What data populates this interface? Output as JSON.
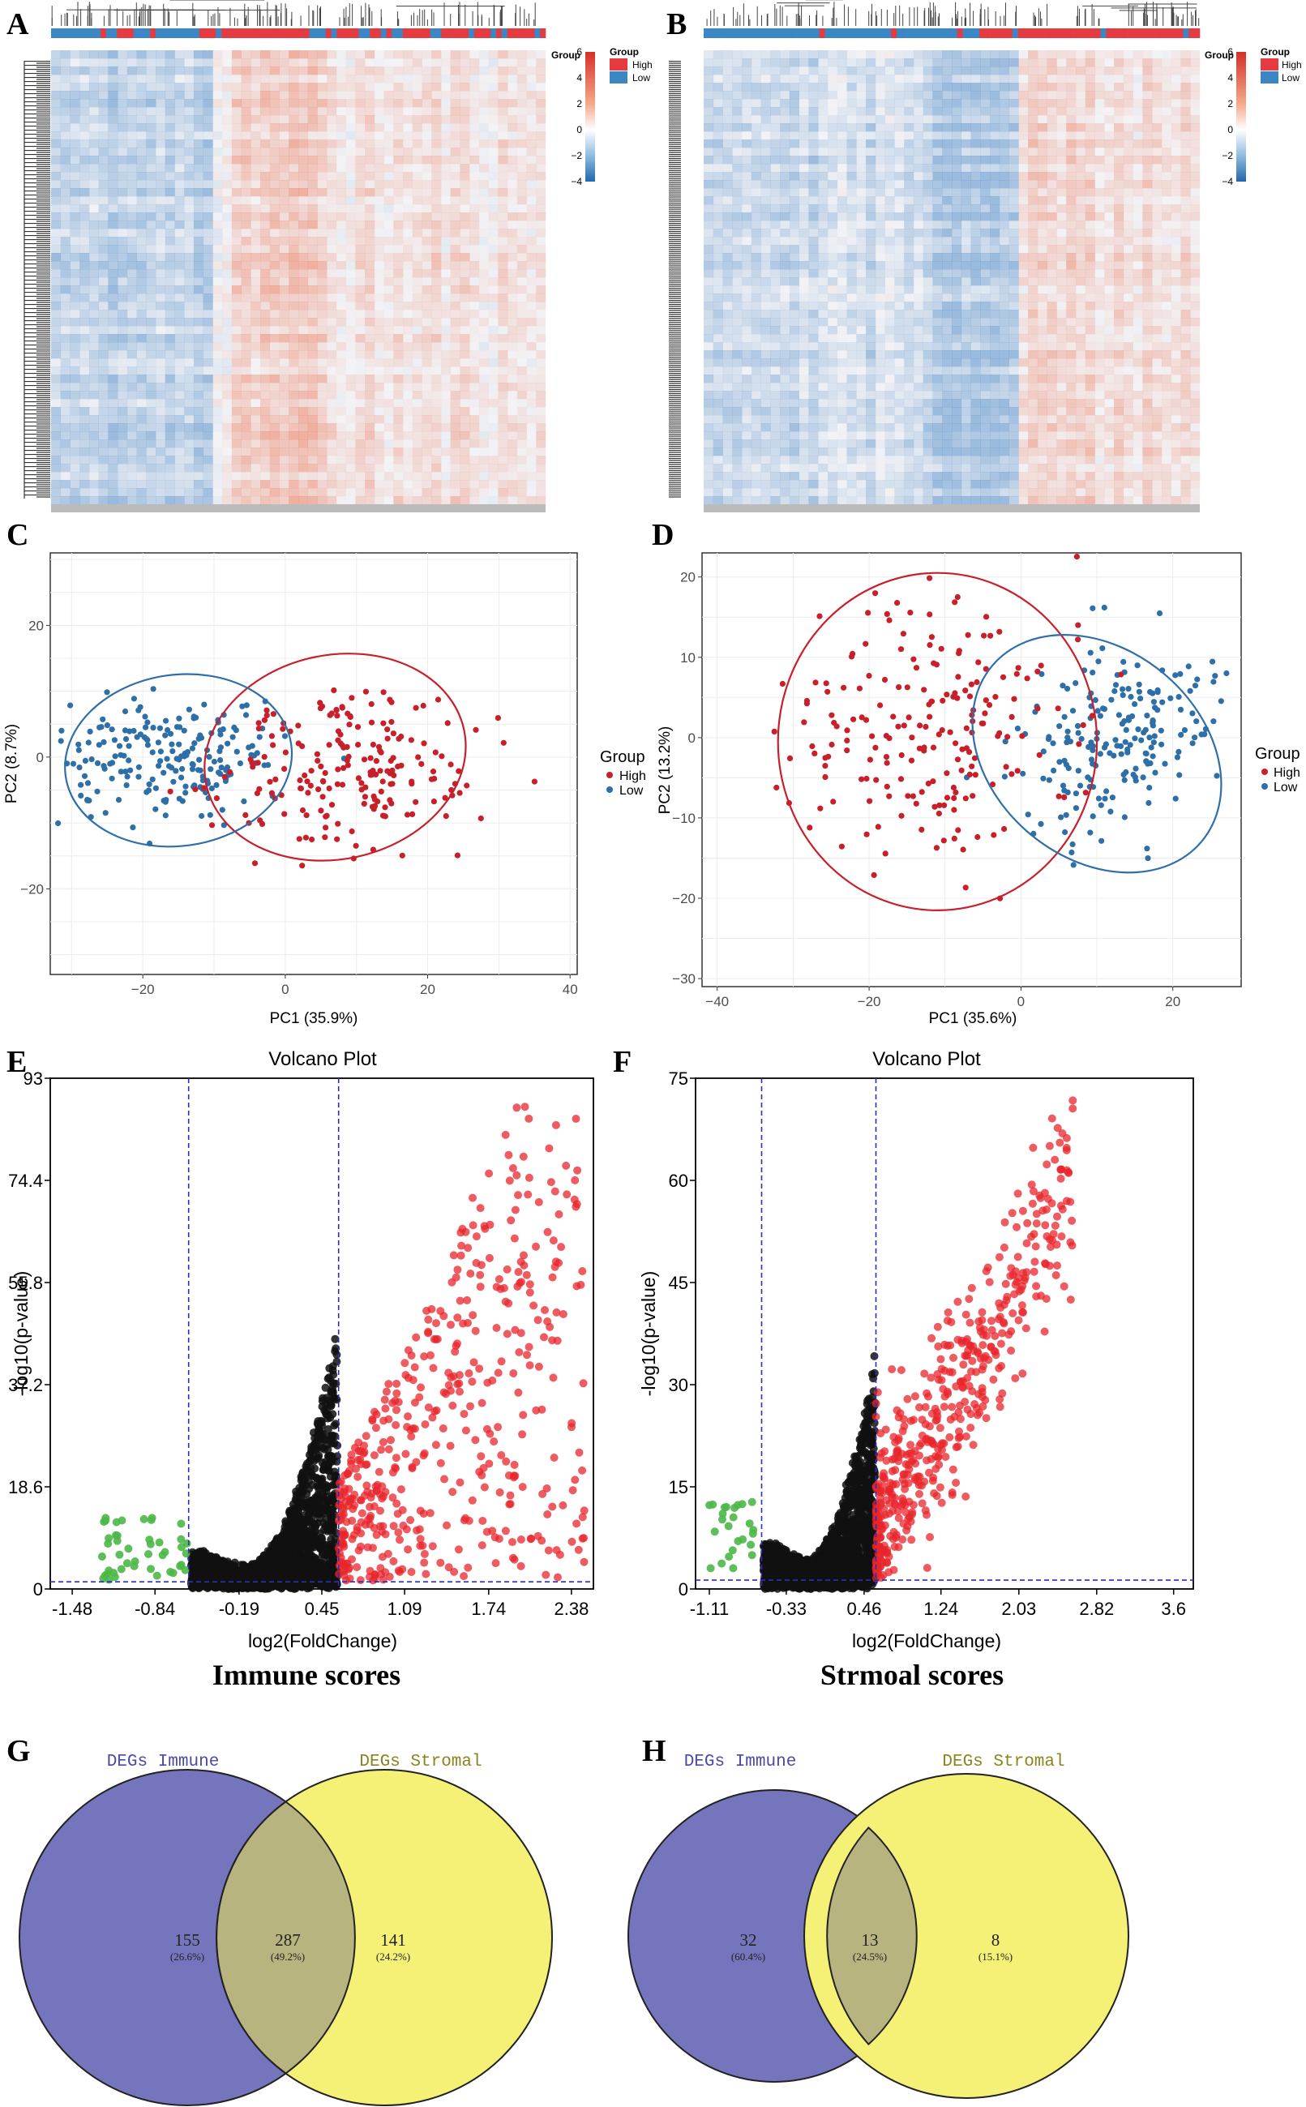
{
  "panel_labels": [
    "A",
    "B",
    "C",
    "D",
    "E",
    "F",
    "G",
    "H"
  ],
  "captions": {
    "e": "Immune scores",
    "f": "Strmoal scores"
  },
  "colors": {
    "high": "#c8202a",
    "low": "#2f6fa8",
    "up": "#e8262c",
    "down": "#4db848",
    "ns": "#111111",
    "venn_immune": "#7575bd",
    "venn_stromal": "#f5f076",
    "venn_overlap": "#b7b47f"
  },
  "chart_data": [
    {
      "id": "heatmap_a",
      "type": "heatmap",
      "panel": "A",
      "annotation": {
        "title": "Group",
        "levels": [
          "High",
          "Low"
        ]
      },
      "colorbar": {
        "ticks": [
          "6",
          "4",
          "2",
          "0",
          "−2",
          "−4"
        ],
        "range": [
          -4,
          6
        ]
      }
    },
    {
      "id": "heatmap_b",
      "type": "heatmap",
      "panel": "B",
      "annotation": {
        "title": "Group",
        "levels": [
          "High",
          "Low"
        ]
      },
      "colorbar": {
        "ticks": [
          "6",
          "4",
          "2",
          "0",
          "−2",
          "−4"
        ],
        "range": [
          -4,
          6
        ]
      }
    },
    {
      "id": "pca_c",
      "type": "scatter",
      "panel": "C",
      "xlabel": "PC1 (35.9%)",
      "ylabel": "PC2 (8.7%)",
      "xlim": [
        -33,
        41
      ],
      "ylim": [
        -33,
        31
      ],
      "xticks": [
        "−20",
        "0",
        "20",
        "40"
      ],
      "xtick_values": [
        -20,
        0,
        20,
        40
      ],
      "yticks": [
        "20",
        "0",
        "−20"
      ],
      "ytick_values": [
        20,
        0,
        -20
      ],
      "legend": {
        "title": "Group",
        "entries": [
          "High",
          "Low"
        ]
      },
      "series": [
        {
          "name": "High",
          "n": 200,
          "center": [
            10,
            -1
          ],
          "sd": [
            8.5,
            6.5
          ],
          "ellipse": {
            "cx": 7,
            "cy": 0,
            "rx": 18.5,
            "ry": 15.5,
            "rot": -12
          }
        },
        {
          "name": "Low",
          "n": 200,
          "center": [
            -16,
            0
          ],
          "sd": [
            7.5,
            4.5
          ],
          "ellipse": {
            "cx": -15,
            "cy": -0.5,
            "rx": 16,
            "ry": 13,
            "rot": -8
          }
        }
      ]
    },
    {
      "id": "pca_d",
      "type": "scatter",
      "panel": "D",
      "xlabel": "PC1 (35.6%)",
      "ylabel": "PC2 (13.2%)",
      "xlim": [
        -42,
        29
      ],
      "ylim": [
        -31,
        23
      ],
      "xticks": [
        "−40",
        "−20",
        "0",
        "20"
      ],
      "xtick_values": [
        -40,
        -20,
        0,
        20
      ],
      "yticks": [
        "20",
        "10",
        "0",
        "−10",
        "−20",
        "−30"
      ],
      "ytick_values": [
        20,
        10,
        0,
        -10,
        -20,
        -30
      ],
      "legend": {
        "title": "Group",
        "entries": [
          "High",
          "Low"
        ]
      },
      "series": [
        {
          "name": "High",
          "n": 200,
          "center": [
            -12,
            2
          ],
          "sd": [
            9,
            7.5
          ],
          "ellipse": {
            "cx": -11,
            "cy": -0.5,
            "rx": 21,
            "ry": 21,
            "rot": 0
          }
        },
        {
          "name": "Low",
          "n": 200,
          "center": [
            12,
            0
          ],
          "sd": [
            7,
            5.5
          ],
          "ellipse": {
            "cx": 10,
            "cy": -2,
            "rx": 18,
            "ry": 13,
            "rot": 40
          }
        }
      ]
    },
    {
      "id": "volcano_e",
      "type": "scatter",
      "panel": "E",
      "title": "Volcano Plot",
      "xlabel": "log2(FoldChange)",
      "ylabel": "-log10(p-value)",
      "xlim": [
        -1.65,
        2.55
      ],
      "ylim": [
        0,
        93
      ],
      "xticks": [
        "-1.48",
        "-0.84",
        "-0.19",
        "0.45",
        "1.09",
        "1.74",
        "2.38"
      ],
      "xtick_values": [
        -1.48,
        -0.84,
        -0.19,
        0.45,
        1.09,
        1.74,
        2.38
      ],
      "yticks": [
        "0",
        "18.6",
        "37.2",
        "55.8",
        "74.4",
        "93"
      ],
      "ytick_values": [
        0,
        18.6,
        37.2,
        55.8,
        74.4,
        93
      ],
      "thresholds": {
        "fc_low": -0.58,
        "fc_high": 0.58,
        "p": 1.3
      },
      "counts": {
        "up": 460,
        "ns": 2300,
        "down": 45
      }
    },
    {
      "id": "volcano_f",
      "type": "scatter",
      "panel": "F",
      "title": "Volcano Plot",
      "xlabel": "log2(FoldChange)",
      "ylabel": "-log10(p-value)",
      "xlim": [
        -1.25,
        3.8
      ],
      "ylim": [
        0,
        75
      ],
      "xticks": [
        "-1.11",
        "-0.33",
        "0.46",
        "1.24",
        "2.03",
        "2.82",
        "3.6"
      ],
      "xtick_values": [
        -1.11,
        -0.33,
        0.46,
        1.24,
        2.03,
        2.82,
        3.6
      ],
      "yticks": [
        "0",
        "15",
        "30",
        "45",
        "60",
        "75"
      ],
      "ytick_values": [
        0,
        15,
        30,
        45,
        60,
        75
      ],
      "thresholds": {
        "fc_low": -0.58,
        "fc_high": 0.58,
        "p": 1.3
      },
      "counts": {
        "up": 480,
        "ns": 2300,
        "down": 25
      }
    },
    {
      "id": "venn_g",
      "type": "venn",
      "panel": "G",
      "sets": [
        "DEGs Immune",
        "DEGs Stromal"
      ],
      "regions": [
        {
          "n": "155",
          "pct": "(26.6%)"
        },
        {
          "n": "287",
          "pct": "(49.2%)"
        },
        {
          "n": "141",
          "pct": "(24.2%)"
        }
      ]
    },
    {
      "id": "venn_h",
      "type": "venn",
      "panel": "H",
      "sets": [
        "DEGs Immune",
        "DEGs Stromal"
      ],
      "regions": [
        {
          "n": "32",
          "pct": "(60.4%)"
        },
        {
          "n": "13",
          "pct": "(24.5%)"
        },
        {
          "n": "8",
          "pct": "(15.1%)"
        }
      ]
    }
  ]
}
